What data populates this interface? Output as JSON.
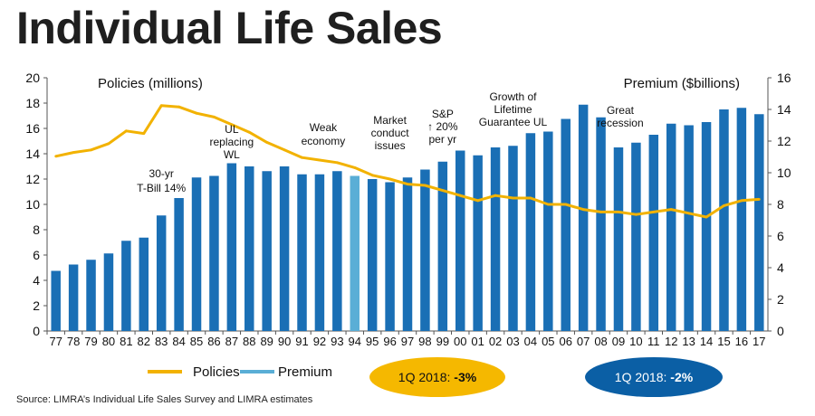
{
  "title": "Individual Life Sales",
  "source": "Source:  LIMRA’s Individual Life Sales Survey and LIMRA estimates",
  "colors": {
    "premium_bar": "#1a6fb5",
    "highlight_bar": "#5aaed6",
    "policies_line": "#f2b200",
    "oval_left": "#f5b800",
    "oval_right": "#0b5fa5"
  },
  "legend": {
    "policies": "Policies",
    "premium": "Premium"
  },
  "callouts": [
    {
      "prefix": "1Q 2018: ",
      "value": "-3%"
    },
    {
      "prefix": "1Q 2018: ",
      "value": "-2%"
    }
  ],
  "chart_data": {
    "type": "bar",
    "left_axis_title": "Policies (millions)",
    "right_axis_title": "Premium ($billions)",
    "left_ylim": [
      0,
      20
    ],
    "left_ticks": [
      "0",
      "2",
      "4",
      "6",
      "8",
      "10",
      "12",
      "14",
      "16",
      "18",
      "20"
    ],
    "right_ylim": [
      0,
      16
    ],
    "right_ticks": [
      "0",
      "2",
      "4",
      "6",
      "8",
      "10",
      "12",
      "14",
      "16"
    ],
    "categories": [
      "77",
      "78",
      "79",
      "80",
      "81",
      "82",
      "83",
      "84",
      "85",
      "86",
      "87",
      "88",
      "89",
      "90",
      "91",
      "92",
      "93",
      "94",
      "95",
      "96",
      "97",
      "98",
      "99",
      "00",
      "01",
      "02",
      "03",
      "04",
      "05",
      "06",
      "07",
      "08",
      "09",
      "10",
      "11",
      "12",
      "13",
      "14",
      "15",
      "16",
      "17"
    ],
    "highlight_category": "94",
    "series": [
      {
        "name": "Premium",
        "type": "bar",
        "axis": "right",
        "values": [
          3.8,
          4.2,
          4.5,
          4.9,
          5.7,
          5.9,
          7.3,
          8.4,
          9.7,
          9.8,
          10.6,
          10.4,
          10.1,
          10.4,
          9.9,
          9.9,
          10.1,
          9.8,
          9.6,
          9.4,
          9.7,
          10.2,
          10.7,
          11.4,
          11.1,
          11.6,
          11.7,
          12.5,
          12.6,
          13.4,
          14.3,
          13.5,
          11.6,
          11.9,
          12.4,
          13.1,
          13.0,
          13.2,
          14.0,
          14.1,
          13.7
        ]
      },
      {
        "name": "Policies",
        "type": "line",
        "axis": "left",
        "values": [
          13.8,
          14.1,
          14.3,
          14.8,
          15.8,
          15.6,
          17.8,
          17.7,
          17.2,
          16.9,
          16.3,
          15.7,
          14.9,
          14.3,
          13.7,
          13.5,
          13.3,
          12.9,
          12.3,
          12.0,
          11.6,
          11.5,
          11.1,
          10.7,
          10.3,
          10.7,
          10.5,
          10.5,
          10.0,
          10.0,
          9.6,
          9.4,
          9.4,
          9.2,
          9.4,
          9.6,
          9.3,
          9.0,
          9.9,
          10.3,
          10.4
        ]
      }
    ],
    "annotations": [
      {
        "lines": [
          "30-yr",
          "T-Bill 14%"
        ],
        "category": "83"
      },
      {
        "lines": [
          "UL",
          "replacing",
          "WL"
        ],
        "category": "87"
      },
      {
        "lines": [
          "Weak",
          "economy"
        ],
        "category": "92"
      },
      {
        "lines": [
          "Market",
          "conduct",
          "issues"
        ],
        "category": "96"
      },
      {
        "lines": [
          "S&P",
          "↑ 20%",
          "per yr"
        ],
        "category": "99"
      },
      {
        "lines": [
          "Growth of",
          "Lifetime",
          "Guarantee UL"
        ],
        "category": "03"
      },
      {
        "lines": [
          "Great",
          "recession"
        ],
        "category": "09"
      }
    ]
  }
}
